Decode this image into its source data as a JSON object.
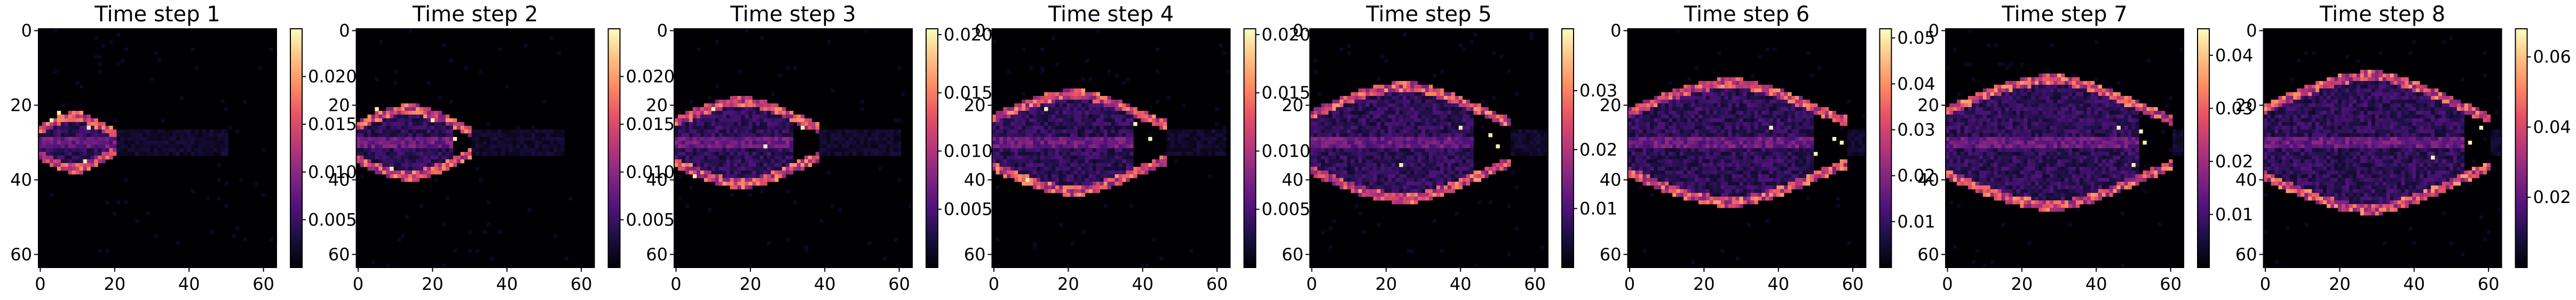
{
  "chart_data": [
    {
      "type": "heatmap",
      "title": "Time step 1",
      "x_ticks": [
        "0",
        "20",
        "40",
        "60"
      ],
      "y_ticks": [
        "0",
        "20",
        "40",
        "60"
      ],
      "xlim": [
        0,
        64
      ],
      "ylim": [
        64,
        0
      ],
      "colormap": "magma",
      "colorbar_range": [
        0,
        0.025
      ],
      "colorbar_ticks": [
        "0.005",
        "0.010",
        "0.015",
        "0.020"
      ],
      "colorbar_tick_values": [
        0.005,
        0.01,
        0.015,
        0.02
      ],
      "features": {
        "outline_min": 0,
        "outline_max": 20,
        "inner_end": 22,
        "tail_end": 50,
        "center_row": 30,
        "half_height": 7,
        "hot_spots": [
          [
            3,
            24
          ],
          [
            13,
            26
          ],
          [
            12,
            35
          ],
          [
            5,
            22
          ]
        ]
      }
    },
    {
      "type": "heatmap",
      "title": "Time step 2",
      "x_ticks": [
        "0",
        "20",
        "40",
        "60"
      ],
      "y_ticks": [
        "0",
        "20",
        "40",
        "60"
      ],
      "xlim": [
        0,
        64
      ],
      "ylim": [
        64,
        0
      ],
      "colormap": "magma",
      "colorbar_range": [
        0,
        0.025
      ],
      "colorbar_ticks": [
        "0.005",
        "0.010",
        "0.015",
        "0.020"
      ],
      "colorbar_tick_values": [
        0.005,
        0.01,
        0.015,
        0.02
      ],
      "features": {
        "outline_min": 0,
        "outline_max": 30,
        "inner_end": 26,
        "tail_end": 55,
        "center_row": 30,
        "half_height": 9,
        "hot_spots": [
          [
            5,
            21
          ],
          [
            20,
            24
          ],
          [
            26,
            29
          ],
          [
            9,
            37
          ]
        ]
      }
    },
    {
      "type": "heatmap",
      "title": "Time step 3",
      "x_ticks": [
        "0",
        "20",
        "40",
        "60"
      ],
      "y_ticks": [
        "0",
        "20",
        "40",
        "60"
      ],
      "xlim": [
        0,
        64
      ],
      "ylim": [
        64,
        0
      ],
      "colormap": "magma",
      "colorbar_range": [
        0,
        0.0205
      ],
      "colorbar_ticks": [
        "0.005",
        "0.010",
        "0.015",
        "0.020"
      ],
      "colorbar_tick_values": [
        0.005,
        0.01,
        0.015,
        0.02
      ],
      "features": {
        "outline_min": 0,
        "outline_max": 38,
        "inner_end": 32,
        "tail_end": 60,
        "center_row": 30,
        "half_height": 11,
        "hot_spots": [
          [
            34,
            26
          ],
          [
            10,
            21
          ],
          [
            24,
            31
          ],
          [
            5,
            39
          ]
        ]
      }
    },
    {
      "type": "heatmap",
      "title": "Time step 4",
      "x_ticks": [
        "0",
        "20",
        "40",
        "60"
      ],
      "y_ticks": [
        "0",
        "20",
        "40",
        "60"
      ],
      "xlim": [
        0,
        64
      ],
      "ylim": [
        64,
        0
      ],
      "colormap": "magma",
      "colorbar_range": [
        0,
        0.0205
      ],
      "colorbar_ticks": [
        "0.005",
        "0.010",
        "0.015",
        "0.020"
      ],
      "colorbar_tick_values": [
        0.005,
        0.01,
        0.015,
        0.02
      ],
      "features": {
        "outline_min": 0,
        "outline_max": 46,
        "inner_end": 38,
        "tail_end": 62,
        "center_row": 30,
        "half_height": 13,
        "hot_spots": [
          [
            38,
            25
          ],
          [
            14,
            21
          ],
          [
            42,
            29
          ],
          [
            9,
            40
          ]
        ]
      }
    },
    {
      "type": "heatmap",
      "title": "Time step 5",
      "x_ticks": [
        "0",
        "20",
        "40",
        "60"
      ],
      "y_ticks": [
        "0",
        "20",
        "40",
        "60"
      ],
      "xlim": [
        0,
        64
      ],
      "ylim": [
        64,
        0
      ],
      "colormap": "magma",
      "colorbar_range": [
        0,
        0.0405
      ],
      "colorbar_ticks": [
        "0.01",
        "0.02",
        "0.03"
      ],
      "colorbar_tick_values": [
        0.01,
        0.02,
        0.03
      ],
      "features": {
        "outline_min": 0,
        "outline_max": 53,
        "inner_end": 44,
        "tail_end": 63,
        "center_row": 30,
        "half_height": 15,
        "hot_spots": [
          [
            48,
            28
          ],
          [
            50,
            31
          ],
          [
            40,
            26
          ],
          [
            24,
            36
          ]
        ]
      }
    },
    {
      "type": "heatmap",
      "title": "Time step 6",
      "x_ticks": [
        "0",
        "20",
        "40",
        "60"
      ],
      "y_ticks": [
        "0",
        "20",
        "40",
        "60"
      ],
      "xlim": [
        0,
        64
      ],
      "ylim": [
        64,
        0
      ],
      "colormap": "magma",
      "colorbar_range": [
        0,
        0.052
      ],
      "colorbar_ticks": [
        "0.01",
        "0.02",
        "0.03",
        "0.04",
        "0.05"
      ],
      "colorbar_tick_values": [
        0.01,
        0.02,
        0.03,
        0.04,
        0.05
      ],
      "features": {
        "outline_min": 0,
        "outline_max": 58,
        "inner_end": 50,
        "tail_end": 64,
        "center_row": 30,
        "half_height": 16,
        "hot_spots": [
          [
            55,
            29
          ],
          [
            57,
            30
          ],
          [
            50,
            33
          ],
          [
            38,
            26
          ]
        ]
      }
    },
    {
      "type": "heatmap",
      "title": "Time step 7",
      "x_ticks": [
        "0",
        "20",
        "40",
        "60"
      ],
      "y_ticks": [
        "0",
        "20",
        "40",
        "60"
      ],
      "xlim": [
        0,
        64
      ],
      "ylim": [
        64,
        0
      ],
      "colormap": "magma",
      "colorbar_range": [
        0,
        0.045
      ],
      "colorbar_ticks": [
        "0.01",
        "0.02",
        "0.03",
        "0.04"
      ],
      "colorbar_tick_values": [
        0.01,
        0.02,
        0.03,
        0.04
      ],
      "features": {
        "outline_min": 0,
        "outline_max": 60,
        "inner_end": 52,
        "tail_end": 64,
        "center_row": 30,
        "half_height": 17,
        "hot_spots": [
          [
            52,
            27
          ],
          [
            53,
            30
          ],
          [
            50,
            36
          ],
          [
            46,
            26
          ]
        ]
      }
    },
    {
      "type": "heatmap",
      "title": "Time step 8",
      "x_ticks": [
        "0",
        "20",
        "40",
        "60"
      ],
      "y_ticks": [
        "0",
        "20",
        "40",
        "60"
      ],
      "xlim": [
        0,
        64
      ],
      "ylim": [
        64,
        0
      ],
      "colormap": "magma",
      "colorbar_range": [
        0,
        0.068
      ],
      "colorbar_ticks": [
        "0.02",
        "0.04",
        "0.06"
      ],
      "colorbar_tick_values": [
        0.02,
        0.04,
        0.06
      ],
      "features": {
        "outline_min": 0,
        "outline_max": 60,
        "inner_end": 54,
        "tail_end": 64,
        "center_row": 30,
        "half_height": 18,
        "hot_spots": [
          [
            58,
            26
          ],
          [
            45,
            34
          ],
          [
            55,
            30
          ]
        ]
      }
    }
  ],
  "colors": {
    "background": "#000004",
    "text": "#000000"
  }
}
